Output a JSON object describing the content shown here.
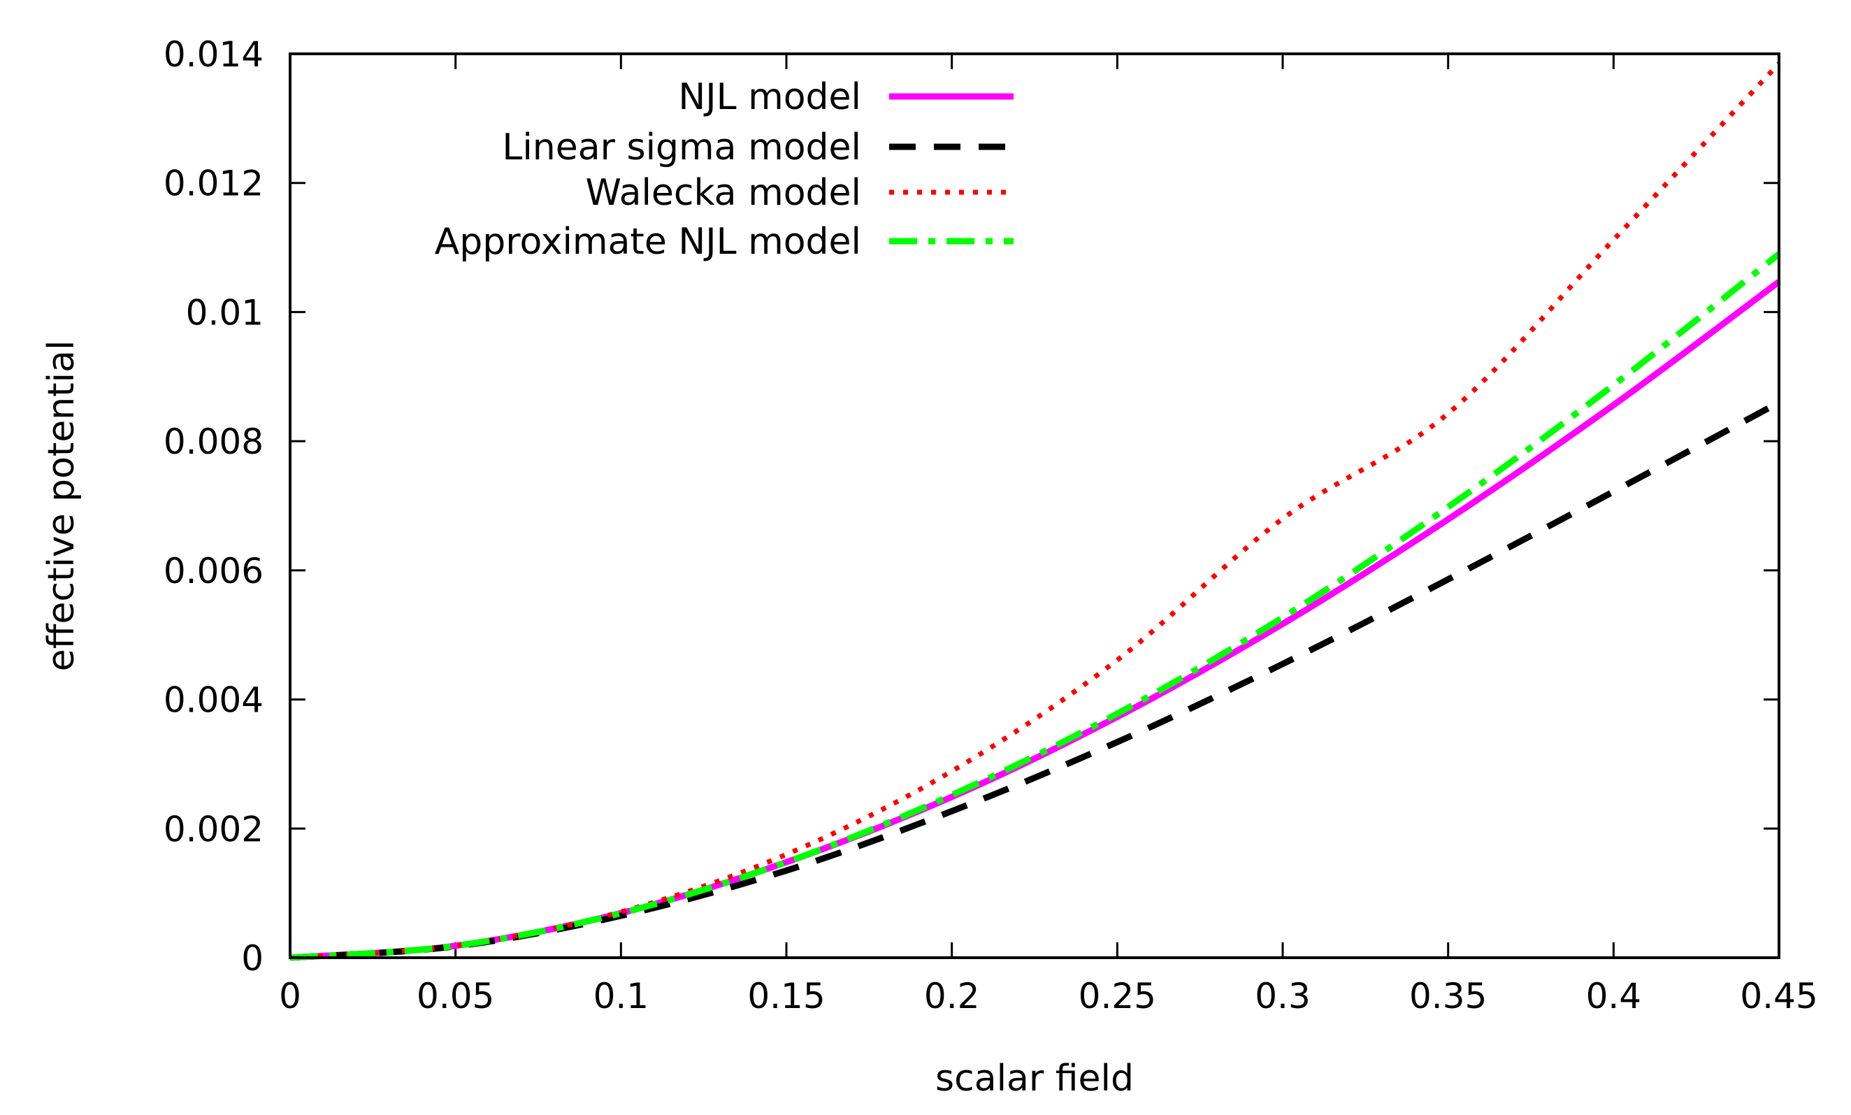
{
  "chart_data": {
    "type": "line",
    "title": "",
    "xlabel": "scalar field",
    "ylabel": "effective potential",
    "xlim": [
      0,
      0.45
    ],
    "ylim": [
      0,
      0.014
    ],
    "grid": false,
    "legend_position": "top-left",
    "x_ticks": [
      {
        "value": 0,
        "label": "0"
      },
      {
        "value": 0.05,
        "label": "0.05"
      },
      {
        "value": 0.1,
        "label": "0.1"
      },
      {
        "value": 0.15,
        "label": "0.15"
      },
      {
        "value": 0.2,
        "label": "0.2"
      },
      {
        "value": 0.25,
        "label": "0.25"
      },
      {
        "value": 0.3,
        "label": "0.3"
      },
      {
        "value": 0.35,
        "label": "0.35"
      },
      {
        "value": 0.4,
        "label": "0.4"
      },
      {
        "value": 0.45,
        "label": "0.45"
      }
    ],
    "y_ticks": [
      {
        "value": 0,
        "label": "0"
      },
      {
        "value": 0.002,
        "label": "0.002"
      },
      {
        "value": 0.004,
        "label": "0.004"
      },
      {
        "value": 0.006,
        "label": "0.006"
      },
      {
        "value": 0.008,
        "label": "0.008"
      },
      {
        "value": 0.01,
        "label": "0.01"
      },
      {
        "value": 0.012,
        "label": "0.012"
      },
      {
        "value": 0.014,
        "label": "0.014"
      }
    ],
    "x": [
      0,
      0.05,
      0.1,
      0.15,
      0.2,
      0.25,
      0.3,
      0.35,
      0.4,
      0.45
    ],
    "series": [
      {
        "name": "NJL model",
        "style": "solid",
        "color": "#ff00ff",
        "values": [
          0,
          0.000185,
          0.00069,
          0.00148,
          0.00249,
          0.00373,
          0.00517,
          0.00679,
          0.00856,
          0.01047
        ]
      },
      {
        "name": "Linear sigma model",
        "style": "dashed",
        "color": "#000000",
        "values": [
          0,
          0.000177,
          0.00065,
          0.00135,
          0.00227,
          0.00334,
          0.00455,
          0.00586,
          0.00722,
          0.0086
        ]
      },
      {
        "name": "Walecka model",
        "style": "dotted",
        "color": "#ff0000",
        "values": [
          0,
          0.000187,
          0.00071,
          0.0016,
          0.00289,
          0.00461,
          0.0068,
          0.00843,
          0.01112,
          0.01385
        ]
      },
      {
        "name": "Approximate NJL model",
        "style": "dashdot",
        "color": "#00ff00",
        "values": [
          0,
          0.000184,
          0.00069,
          0.00148,
          0.00252,
          0.00378,
          0.00527,
          0.00698,
          0.00887,
          0.0109
        ]
      }
    ]
  }
}
